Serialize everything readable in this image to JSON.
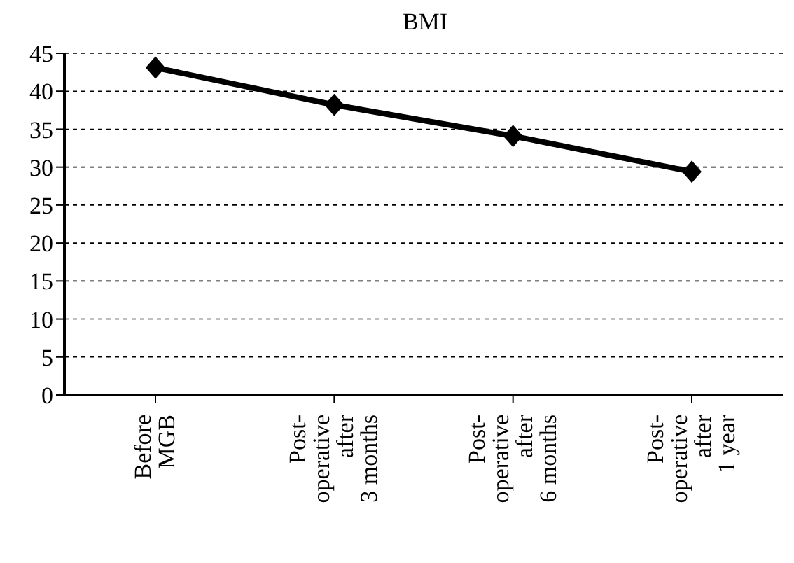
{
  "chart_data": {
    "type": "line",
    "title": "BMI",
    "categories": [
      "Before MGB",
      "Post-operative after 3 months",
      "Post-operative after 6 months",
      "Post-operative after 1 year"
    ],
    "series": [
      {
        "color": "#000000",
        "values": [
          43.1,
          38.2,
          34.1,
          29.4
        ]
      }
    ],
    "ylim": [
      0,
      45
    ],
    "yticks": [
      0,
      5,
      10,
      15,
      20,
      25,
      30,
      35,
      40,
      45
    ],
    "grid": "y",
    "legend": false,
    "marker": "diamond",
    "line_style": "solid"
  }
}
